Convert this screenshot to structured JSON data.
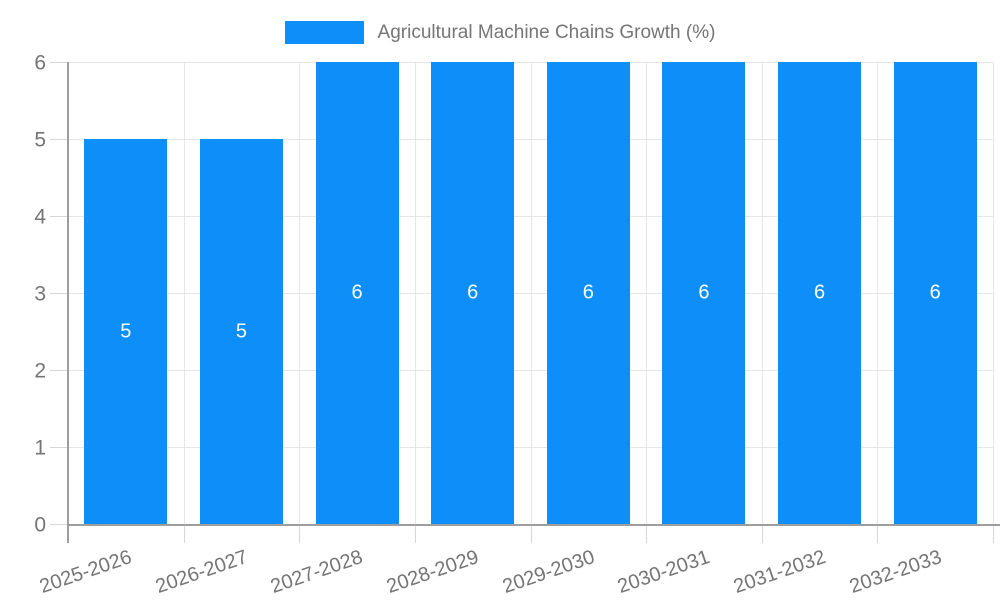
{
  "legend": {
    "label": "Agricultural Machine Chains Growth (%)"
  },
  "chart_data": {
    "type": "bar",
    "title": "Agricultural Machine Chains Growth (%)",
    "categories": [
      "2025-2026",
      "2026-2027",
      "2027-2028",
      "2028-2029",
      "2029-2030",
      "2030-2031",
      "2031-2032",
      "2032-2033"
    ],
    "values": [
      5,
      5,
      6,
      6,
      6,
      6,
      6,
      6
    ],
    "bar_value_labels": [
      "5",
      "5",
      "6",
      "6",
      "6",
      "6",
      "6",
      "6"
    ],
    "xlabel": "",
    "ylabel": "",
    "ylim": [
      0,
      6
    ],
    "yticks": [
      0,
      1,
      2,
      3,
      4,
      5,
      6
    ],
    "grid": true,
    "legend_position": "top-center",
    "colors": {
      "bar": "#0d8ef8",
      "text": "#757575",
      "axis": "#9e9e9e",
      "grid": "#e6e6e6",
      "tick": "#d6d6d6",
      "bar_label": "#ffffff"
    }
  }
}
